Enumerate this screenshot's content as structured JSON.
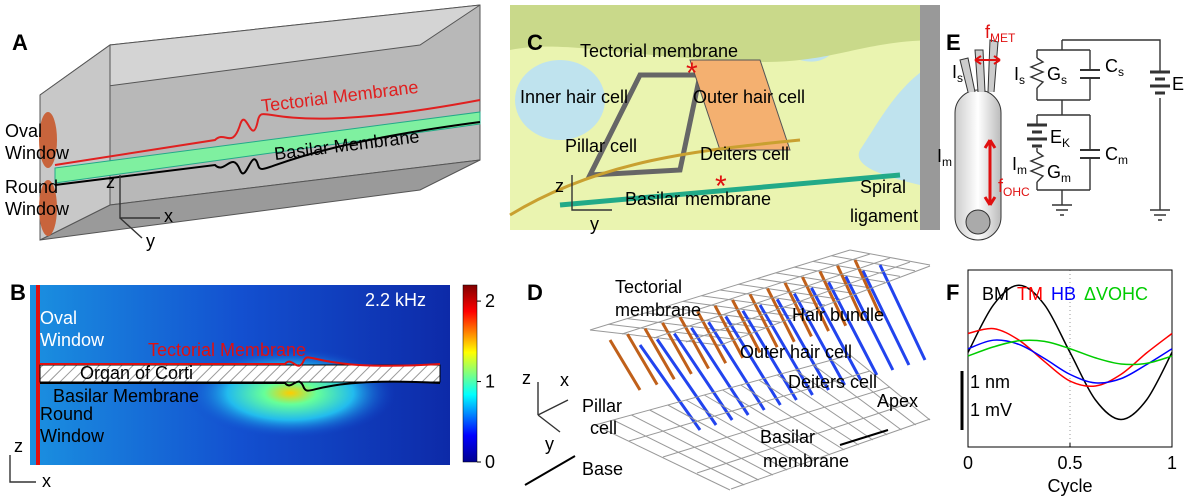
{
  "panel_labels": {
    "a": "A",
    "b": "B",
    "c": "C",
    "d": "D",
    "e": "E",
    "f": "F"
  },
  "panel_a": {
    "oval_window": [
      "Oval",
      "Window"
    ],
    "round_window": [
      "Round",
      "Window"
    ],
    "tectorial_membrane": "Tectorial Membrane",
    "basilar_membrane": "Basilar Membrane",
    "axis_z": "z",
    "axis_x": "x",
    "axis_y": "y"
  },
  "panel_b": {
    "frequency": "2.2 kHz",
    "oval_window": [
      "Oval",
      "Window"
    ],
    "round_window": [
      "Round",
      "Window"
    ],
    "tectorial_membrane": "Tectorial Membrane",
    "organ_of_corti": "Organ of Corti",
    "basilar_membrane": "Basilar Membrane",
    "axis_z": "z",
    "axis_x": "x",
    "colorbar": {
      "lim": [
        0,
        2.2
      ],
      "ticks": [
        0,
        1,
        2
      ]
    }
  },
  "panel_c": {
    "tectorial_membrane": "Tectorial membrane",
    "inner_hair_cell": "Inner hair cell",
    "outer_hair_cell": "Outer hair cell",
    "pillar_cell": "Pillar cell",
    "deiters_cell": "Deiters cell",
    "basilar_membrane": "Basilar membrane",
    "spiral_ligament": [
      "Spiral",
      "ligament"
    ],
    "axis_z": "z",
    "axis_y": "y",
    "marker": "*"
  },
  "panel_d": {
    "tectorial_membrane": [
      "Tectorial",
      "membrane"
    ],
    "hair_bundle": "Hair bundle",
    "outer_hair_cell": "Outer hair cell",
    "deiters_cell": "Deiters cell",
    "pillar_cell": [
      "Pillar",
      "cell"
    ],
    "basilar_membrane": [
      "Basilar",
      "membrane"
    ],
    "apex": "Apex",
    "base": "Base",
    "axis_z": "z",
    "axis_x": "x",
    "axis_y": "y"
  },
  "panel_e": {
    "f_met": [
      "f",
      "MET"
    ],
    "i_s_cell": [
      "I",
      "s"
    ],
    "i_m_cell": [
      "I",
      "m"
    ],
    "f_ohc": [
      "f",
      "OHC"
    ],
    "i_s": [
      "I",
      "s"
    ],
    "g_s": [
      "G",
      "s"
    ],
    "c_s": [
      "C",
      "s"
    ],
    "e_a": "E",
    "e_k": [
      "E",
      "K"
    ],
    "i_m": [
      "I",
      "m"
    ],
    "g_m": [
      "G",
      "m"
    ],
    "c_m": [
      "C",
      "m"
    ]
  },
  "panel_f": {
    "chart_data": {
      "type": "line",
      "xlabel": "Cycle",
      "x": [
        0,
        0.125,
        0.25,
        0.375,
        0.5,
        0.625,
        0.75,
        0.875,
        1
      ],
      "series": [
        {
          "name": "BM",
          "color": "#000000",
          "values": [
            0.05,
            0.83,
            1.15,
            0.83,
            0.05,
            -0.73,
            -1.05,
            -0.73,
            0.05
          ]
        },
        {
          "name": "TM",
          "color": "#ff0000",
          "values": [
            0.36,
            0.44,
            0.25,
            -0.1,
            -0.42,
            -0.5,
            -0.31,
            0.04,
            0.36
          ]
        },
        {
          "name": "HB",
          "color": "#0000ff",
          "values": [
            0.11,
            0.25,
            0.18,
            -0.05,
            -0.31,
            -0.45,
            -0.38,
            -0.15,
            0.11
          ]
        },
        {
          "name": "ΔVOHC",
          "color": "#00cc00",
          "values": [
            -0.01,
            0.14,
            0.24,
            0.23,
            0.11,
            -0.04,
            -0.14,
            -0.13,
            -0.01
          ]
        }
      ],
      "xlim": [
        0,
        1
      ],
      "xticks": [
        0,
        0.5,
        1
      ],
      "ylim": [
        -1.5,
        1.4
      ],
      "grid": true,
      "scale_bar": [
        "1 nm",
        "1 mV"
      ]
    }
  }
}
